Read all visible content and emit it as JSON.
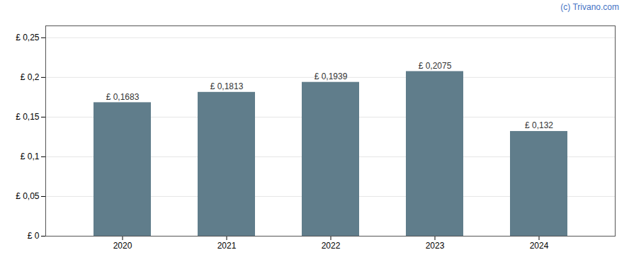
{
  "chart_data": {
    "type": "bar",
    "categories": [
      "2020",
      "2021",
      "2022",
      "2023",
      "2024"
    ],
    "values": [
      0.1683,
      0.1813,
      0.1939,
      0.2075,
      0.132
    ],
    "value_labels": [
      "£ 0,1683",
      "£ 0,1813",
      "£ 0,1939",
      "£ 0,2075",
      "£ 0,132"
    ],
    "data_labels": true,
    "color": "#607d8b",
    "ylim": [
      0,
      0.265
    ],
    "yticks": [
      {
        "value": 0,
        "label": "£ 0"
      },
      {
        "value": 0.05,
        "label": "£ 0,05"
      },
      {
        "value": 0.1,
        "label": "£ 0,1"
      },
      {
        "value": 0.15,
        "label": "£ 0,15"
      },
      {
        "value": 0.2,
        "label": "£ 0,2"
      },
      {
        "value": 0.25,
        "label": "£ 0,25"
      }
    ],
    "grid": true,
    "annotations": [
      {
        "text": "(c) Trivano.com",
        "color": "#4472c4"
      }
    ]
  }
}
